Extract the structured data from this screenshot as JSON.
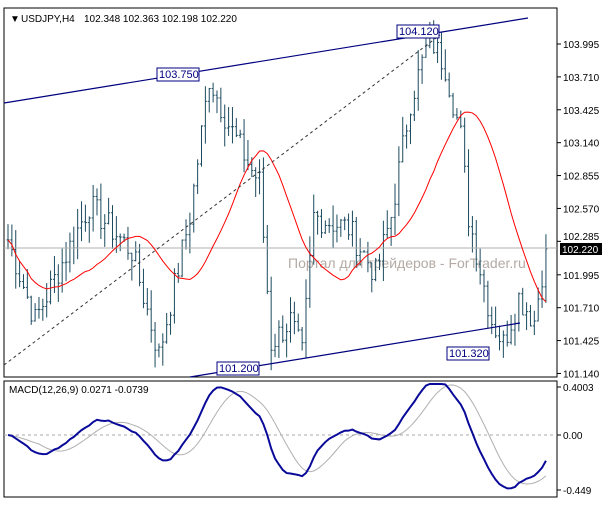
{
  "header": {
    "symbol": "USDJPY,H4",
    "ohlc": "102.348 102.363 102.198 102.220"
  },
  "watermark": "Портал для трейдеров - ForTrader.ru",
  "colors": {
    "bars": "#1b4a5e",
    "ma": "#ff0000",
    "channel": "#000080",
    "macd": "#0a0a9a",
    "signal": "#b0b0b0",
    "price_tag_bg": "#000000"
  },
  "chart_data": [
    {
      "type": "ohlc",
      "title": "USDJPY,H4",
      "current_price": "102.220",
      "yticks": [
        "103.995",
        "103.710",
        "103.425",
        "103.140",
        "102.855",
        "102.570",
        "102.285",
        "101.995",
        "101.710",
        "101.425",
        "101.140"
      ],
      "ylim": [
        101.14,
        104.2
      ],
      "close_waypoints": [
        [
          0,
          102.3
        ],
        [
          7,
          101.6
        ],
        [
          21,
          102.6
        ],
        [
          32,
          102.2
        ],
        [
          39,
          101.3
        ],
        [
          47,
          102.5
        ],
        [
          52,
          103.7
        ],
        [
          57,
          103.3
        ],
        [
          63,
          102.9
        ],
        [
          65,
          102.8
        ],
        [
          68,
          101.4
        ],
        [
          73,
          101.6
        ],
        [
          76,
          101.3
        ],
        [
          79,
          102.5
        ],
        [
          88,
          102.4
        ],
        [
          95,
          102.0
        ],
        [
          99,
          102.5
        ],
        [
          104,
          103.5
        ],
        [
          109,
          104.05
        ],
        [
          113,
          103.8
        ],
        [
          117,
          103.2
        ],
        [
          119,
          102.5
        ],
        [
          125,
          101.6
        ],
        [
          128,
          101.4
        ],
        [
          132,
          101.8
        ],
        [
          136,
          101.6
        ],
        [
          139,
          102.22
        ]
      ],
      "annotations": [
        "104.120",
        "103.750",
        "101.200",
        "101.320"
      ],
      "ma_label": "MA"
    },
    {
      "type": "line",
      "title": "MACD(12,26,9) 0.0271 -0.0739",
      "yticks": [
        "0.4003",
        "0.00",
        "-0.449"
      ],
      "ylim": [
        -0.449,
        0.4003
      ]
    }
  ]
}
